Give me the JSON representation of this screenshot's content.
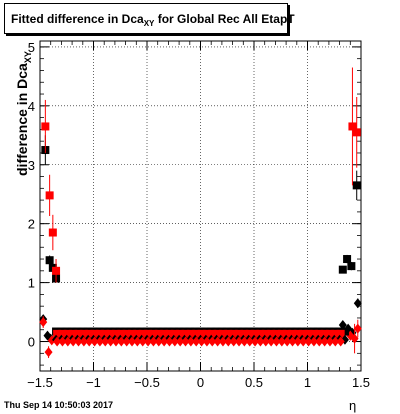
{
  "chart_data": {
    "type": "scatter",
    "title_main": "Fitted difference in Dca",
    "title_sub": "XY",
    "title_suffix": " for Global Rec All EtapT",
    "ylabel_main": "difference in Dca",
    "ylabel_sub": "XY",
    "xlabel": "η",
    "timestamp": "Thu Sep 14 10:50:03 2017",
    "xlim": [
      -1.5,
      1.5
    ],
    "ylim": [
      -0.5,
      5.1
    ],
    "grid": true,
    "xticks": [
      "−1.5",
      "−1",
      "−0.5",
      "0",
      "0.5",
      "1",
      "1.5"
    ],
    "yticks": [
      "0",
      "1",
      "2",
      "3",
      "4",
      "5"
    ],
    "colors": {
      "series_a": "#000000",
      "series_b": "#ff0000"
    },
    "series": [
      {
        "marker": "square",
        "color": "#000000",
        "points": [
          {
            "x": -1.45,
            "y": 3.25,
            "err": 0.25
          },
          {
            "x": -1.41,
            "y": 1.38,
            "err": 0.08
          },
          {
            "x": -1.38,
            "y": 1.25,
            "err": 0.07
          },
          {
            "x": -1.35,
            "y": 1.07,
            "err": 0.06
          },
          {
            "x": 1.33,
            "y": 1.22,
            "err": 0.06
          },
          {
            "x": 1.37,
            "y": 1.4,
            "err": 0.07
          },
          {
            "x": 1.41,
            "y": 1.28,
            "err": 0.07
          },
          {
            "x": 1.46,
            "y": 2.65,
            "err": 0.25
          }
        ]
      },
      {
        "marker": "square",
        "color": "#ff0000",
        "points": [
          {
            "x": -1.45,
            "y": 3.65,
            "err": 0.45
          },
          {
            "x": -1.41,
            "y": 2.48,
            "err": 0.35
          },
          {
            "x": -1.38,
            "y": 1.85,
            "err": 0.3
          },
          {
            "x": -1.35,
            "y": 1.2,
            "err": 0.2
          },
          {
            "x": 1.42,
            "y": 3.65,
            "err": 1.0
          },
          {
            "x": 1.46,
            "y": 3.55,
            "err": 0.6
          }
        ]
      },
      {
        "marker": "diamond",
        "color": "#000000",
        "points": [
          {
            "x": -1.47,
            "y": 0.38,
            "err": 0.05
          },
          {
            "x": -1.43,
            "y": 0.1,
            "err": 0.05
          },
          {
            "x": -1.4,
            "y": 0.05,
            "err": 0.04
          },
          {
            "x": 1.33,
            "y": 0.28,
            "err": 0.05
          },
          {
            "x": 1.38,
            "y": 0.22,
            "err": 0.05
          },
          {
            "x": 1.42,
            "y": 0.15,
            "err": 0.06
          },
          {
            "x": 1.47,
            "y": 0.65,
            "err": 0.08
          }
        ]
      },
      {
        "marker": "diamond",
        "color": "#ff0000",
        "points": [
          {
            "x": -1.47,
            "y": 0.33,
            "err": 0.1
          },
          {
            "x": -1.42,
            "y": -0.18,
            "err": 0.1
          },
          {
            "x": -1.39,
            "y": 0.02,
            "err": 0.06
          },
          {
            "x": 1.4,
            "y": 0.1,
            "err": 0.08
          },
          {
            "x": 1.44,
            "y": 0.05,
            "err": 0.25
          },
          {
            "x": 1.47,
            "y": 0.22,
            "err": 0.15
          }
        ]
      },
      {
        "marker": "square",
        "color": "#000000",
        "band": true,
        "x_from": -1.35,
        "x_to": 1.35,
        "step": 0.05,
        "y": 0.17,
        "note": "central plateau (black)"
      },
      {
        "marker": "square",
        "color": "#ff0000",
        "band": true,
        "x_from": -1.34,
        "x_to": 1.34,
        "step": 0.05,
        "y": 0.13,
        "note": "central plateau (red)"
      },
      {
        "marker": "diamond",
        "color": "#000000",
        "band": true,
        "x_from": -1.35,
        "x_to": 1.35,
        "step": 0.05,
        "y": 0.03,
        "note": "central plateau (black diamonds)"
      },
      {
        "marker": "diamond",
        "color": "#ff0000",
        "band": true,
        "x_from": -1.34,
        "x_to": 1.34,
        "step": 0.05,
        "y": 0.0,
        "note": "central plateau (red diamonds)"
      }
    ]
  }
}
